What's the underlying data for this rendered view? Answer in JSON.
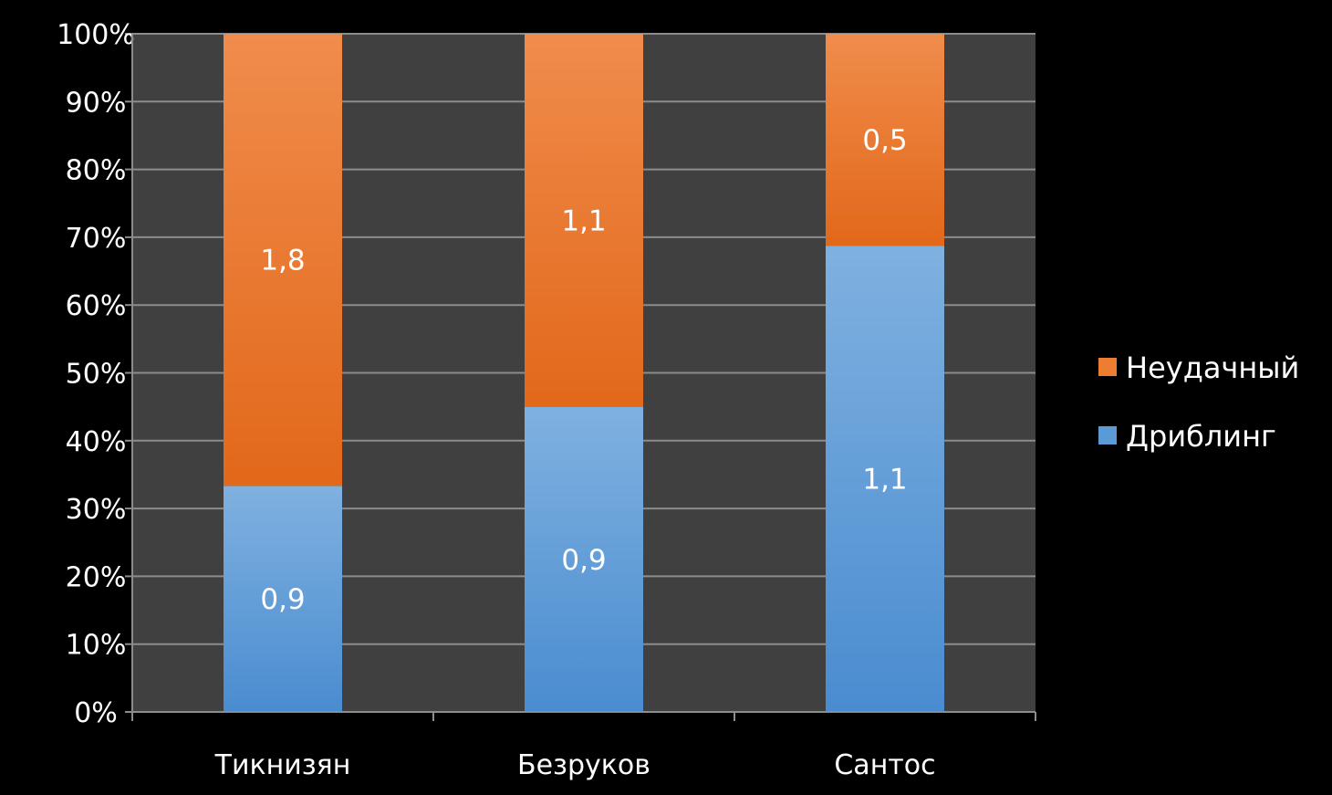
{
  "chart_data": {
    "type": "bar",
    "stacking": "percent",
    "categories": [
      "Тикнизян",
      "Безруков",
      "Сантос"
    ],
    "series": [
      {
        "name": "Дриблинг",
        "values": [
          0.9,
          0.9,
          1.1
        ],
        "labels": [
          "0,9",
          "0,9",
          "1,1"
        ]
      },
      {
        "name": "Неудачный",
        "values": [
          1.8,
          1.1,
          0.5
        ],
        "labels": [
          "1,8",
          "1,1",
          "0,5"
        ]
      }
    ],
    "legend_order": [
      "Неудачный",
      "Дриблинг"
    ],
    "y_ticks": [
      "0%",
      "10%",
      "20%",
      "30%",
      "40%",
      "50%",
      "60%",
      "70%",
      "80%",
      "90%",
      "100%"
    ],
    "ylim": [
      0,
      100
    ],
    "grid": true,
    "legend_position": "right",
    "colors": {
      "background": "#000000",
      "plot_area": "#404040",
      "gridline": "#8c8c8c",
      "series": {
        "Дриблинг": "#5b9bd5",
        "Неудачный": "#ed7d31"
      }
    }
  }
}
